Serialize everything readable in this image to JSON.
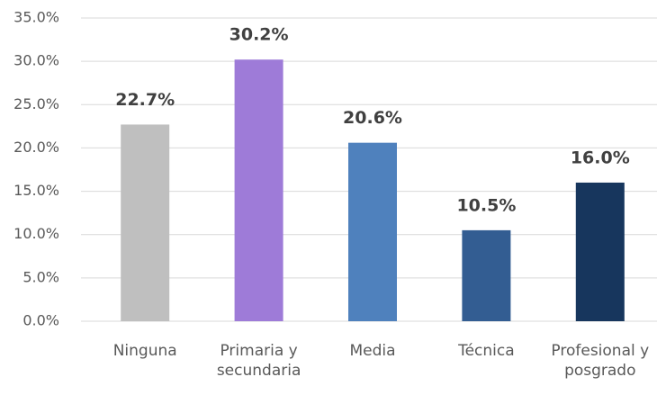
{
  "chart_data": {
    "type": "bar",
    "categories": [
      "Ninguna",
      "Primaria y secundaria",
      "Media",
      "Técnica",
      "Profesional y posgrado"
    ],
    "values": [
      22.7,
      30.2,
      20.6,
      10.5,
      16.0
    ],
    "value_labels": [
      "22.7%",
      "30.2%",
      "20.6%",
      "10.5%",
      "16.0%"
    ],
    "colors": [
      "#bfbfbf",
      "#9e7bd8",
      "#4f81bd",
      "#335d92",
      "#17365d"
    ],
    "ylim": [
      0,
      35
    ],
    "yticks": [
      {
        "value": 0,
        "label": "0.0%"
      },
      {
        "value": 5,
        "label": "5.0%"
      },
      {
        "value": 10,
        "label": "10.0%"
      },
      {
        "value": 15,
        "label": "15.0%"
      },
      {
        "value": 20,
        "label": "20.0%"
      },
      {
        "value": 25,
        "label": "25.0%"
      },
      {
        "value": 30,
        "label": "30.0%"
      },
      {
        "value": 35,
        "label": "35.0%"
      }
    ],
    "grid": true
  }
}
